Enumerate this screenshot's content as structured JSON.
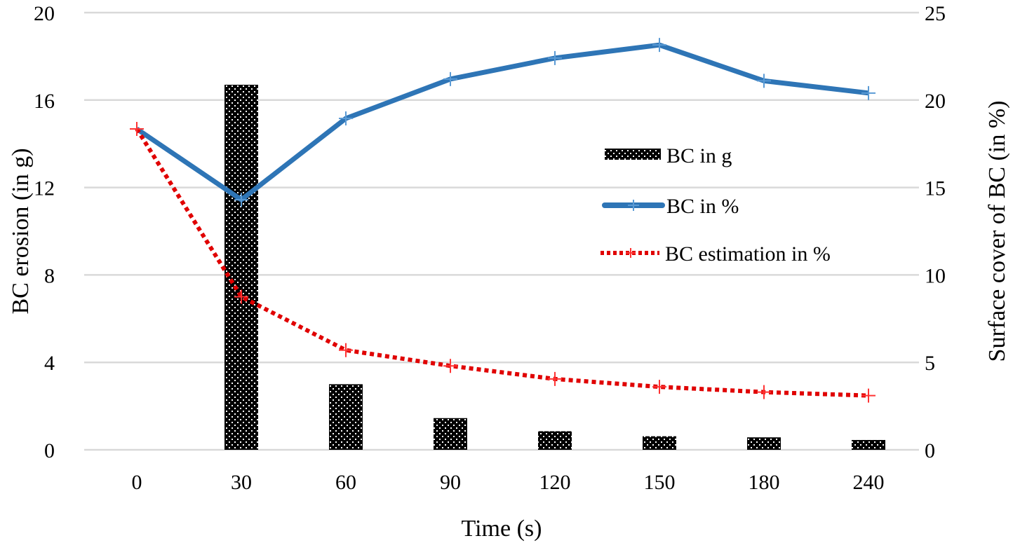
{
  "chart_data": {
    "type": "bar+line",
    "categories": [
      "0",
      "30",
      "60",
      "90",
      "120",
      "150",
      "180",
      "240"
    ],
    "xlabel": "Time (s)",
    "ylabel_left": "BC erosion (in g)",
    "ylabel_right": "Surface cover of BC (in %)",
    "ylim_left": [
      0,
      20
    ],
    "yticks_left": [
      0,
      4,
      8,
      12,
      16,
      20
    ],
    "ylim_right": [
      0,
      25
    ],
    "yticks_right": [
      0,
      5,
      10,
      15,
      20,
      25
    ],
    "grid": true,
    "legend_position": "center-right",
    "series": [
      {
        "name": "BC in g",
        "kind": "bar",
        "axis": "left",
        "color": "#000000",
        "pattern": "dotted",
        "values": [
          null,
          16.7,
          3.0,
          1.45,
          0.85,
          0.62,
          0.57,
          0.45
        ]
      },
      {
        "name": "BC in %",
        "kind": "line",
        "axis": "right",
        "color": "#2E75B6",
        "marker": "plus",
        "values": [
          18.35,
          14.3,
          18.95,
          21.2,
          22.4,
          23.15,
          21.1,
          20.4
        ]
      },
      {
        "name": "BC estimation in %",
        "kind": "line",
        "axis": "right",
        "color": "#E00000",
        "dash": "dotted",
        "marker": "plus",
        "values": [
          18.35,
          8.75,
          5.7,
          4.8,
          4.05,
          3.6,
          3.3,
          3.1
        ]
      }
    ]
  }
}
